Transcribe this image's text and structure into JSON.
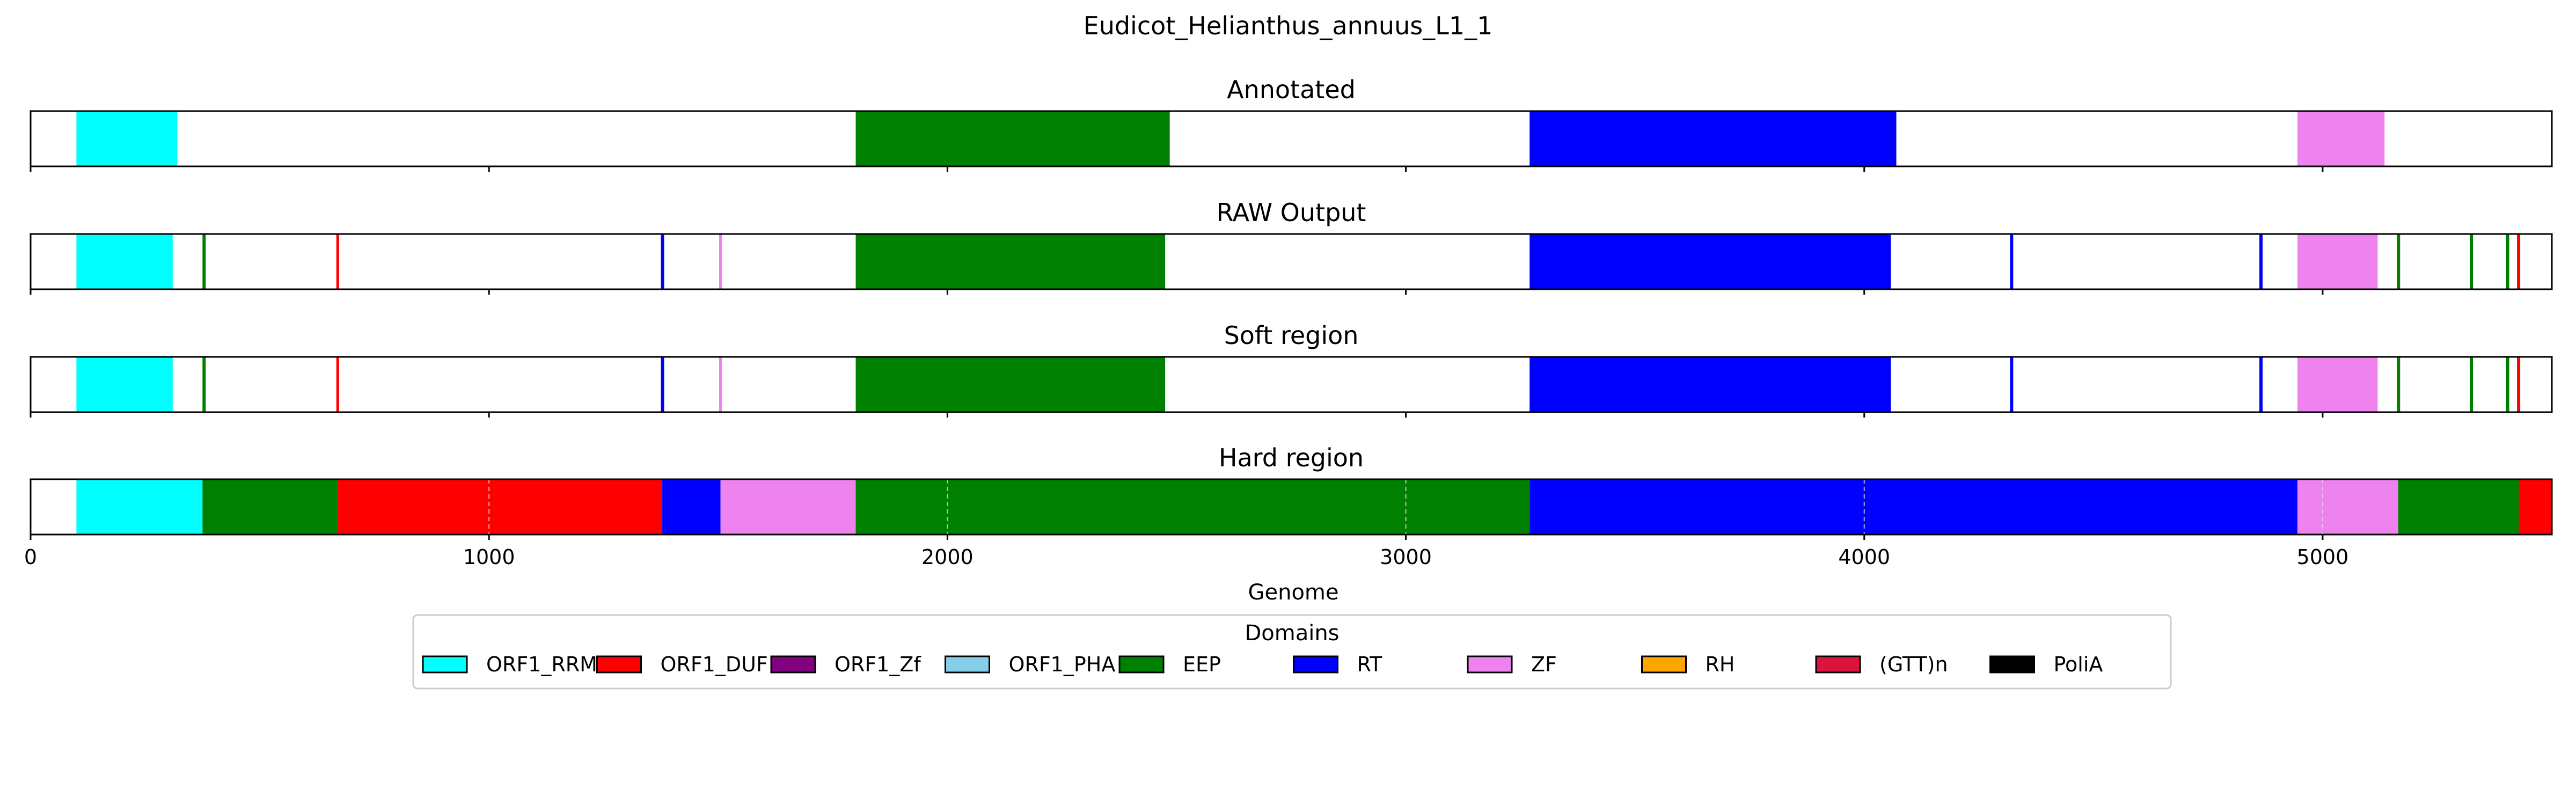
{
  "chart_data": {
    "type": "genome-track",
    "title": "Eudicot_Helianthus_annuus_L1_1",
    "xlabel": "Genome",
    "xlim": [
      0,
      5500
    ],
    "xticks": [
      0,
      1000,
      2000,
      3000,
      4000,
      5000
    ],
    "grid": "dashed vertical lines at x ticks (bottom panel)",
    "legend": {
      "title": "Domains",
      "placement": "bottom-center",
      "entries": [
        {
          "name": "ORF1_RRM",
          "color": "#00ffff"
        },
        {
          "name": "ORF1_DUF",
          "color": "#ff0000"
        },
        {
          "name": "ORF1_Zf",
          "color": "#800080"
        },
        {
          "name": "ORF1_PHA",
          "color": "#87ceeb"
        },
        {
          "name": "EEP",
          "color": "#008000"
        },
        {
          "name": "RT",
          "color": "#0000ff"
        },
        {
          "name": "ZF",
          "color": "#ee82ee"
        },
        {
          "name": "RH",
          "color": "#ffa500"
        },
        {
          "name": "(GTT)n",
          "color": "#dc143c"
        },
        {
          "name": "PoliA",
          "color": "#000000"
        }
      ]
    },
    "panels": [
      {
        "title": "Annotated",
        "segments": [
          {
            "domain": "ORF1_RRM",
            "start": 100,
            "end": 320
          },
          {
            "domain": "EEP",
            "start": 1800,
            "end": 2485
          },
          {
            "domain": "RT",
            "start": 3270,
            "end": 4070
          },
          {
            "domain": "ZF",
            "start": 4945,
            "end": 5135
          }
        ]
      },
      {
        "title": "RAW Output",
        "segments": [
          {
            "domain": "ORF1_RRM",
            "start": 100,
            "end": 310
          },
          {
            "domain": "EEP",
            "start": 375,
            "end": 382
          },
          {
            "domain": "ORF1_DUF",
            "start": 667,
            "end": 673
          },
          {
            "domain": "RT",
            "start": 1375,
            "end": 1382
          },
          {
            "domain": "ZF",
            "start": 1502,
            "end": 1508
          },
          {
            "domain": "EEP",
            "start": 1800,
            "end": 2475
          },
          {
            "domain": "RT",
            "start": 3270,
            "end": 4058
          },
          {
            "domain": "RT",
            "start": 4318,
            "end": 4325
          },
          {
            "domain": "RT",
            "start": 4862,
            "end": 4869
          },
          {
            "domain": "ZF",
            "start": 4945,
            "end": 5120
          },
          {
            "domain": "EEP",
            "start": 5162,
            "end": 5169
          },
          {
            "domain": "EEP",
            "start": 5321,
            "end": 5328
          },
          {
            "domain": "EEP",
            "start": 5400,
            "end": 5407
          },
          {
            "domain": "ORF1_DUF",
            "start": 5424,
            "end": 5431
          }
        ]
      },
      {
        "title": "Soft region",
        "segments": [
          {
            "domain": "ORF1_RRM",
            "start": 100,
            "end": 310
          },
          {
            "domain": "EEP",
            "start": 375,
            "end": 382
          },
          {
            "domain": "ORF1_DUF",
            "start": 667,
            "end": 673
          },
          {
            "domain": "RT",
            "start": 1375,
            "end": 1382
          },
          {
            "domain": "ZF",
            "start": 1502,
            "end": 1508
          },
          {
            "domain": "EEP",
            "start": 1800,
            "end": 2475
          },
          {
            "domain": "RT",
            "start": 3270,
            "end": 4058
          },
          {
            "domain": "RT",
            "start": 4318,
            "end": 4325
          },
          {
            "domain": "RT",
            "start": 4862,
            "end": 4869
          },
          {
            "domain": "ZF",
            "start": 4945,
            "end": 5120
          },
          {
            "domain": "EEP",
            "start": 5162,
            "end": 5169
          },
          {
            "domain": "EEP",
            "start": 5321,
            "end": 5328
          },
          {
            "domain": "EEP",
            "start": 5400,
            "end": 5407
          },
          {
            "domain": "ORF1_DUF",
            "start": 5424,
            "end": 5431
          }
        ]
      },
      {
        "title": "Hard region",
        "segments": [
          {
            "domain": "ORF1_RRM",
            "start": 100,
            "end": 375
          },
          {
            "domain": "EEP",
            "start": 375,
            "end": 670
          },
          {
            "domain": "ORF1_DUF",
            "start": 670,
            "end": 1378
          },
          {
            "domain": "RT",
            "start": 1378,
            "end": 1505
          },
          {
            "domain": "ZF",
            "start": 1505,
            "end": 1800
          },
          {
            "domain": "EEP",
            "start": 1800,
            "end": 3270
          },
          {
            "domain": "RT",
            "start": 3270,
            "end": 4945
          },
          {
            "domain": "ZF",
            "start": 4945,
            "end": 5165
          },
          {
            "domain": "EEP",
            "start": 5165,
            "end": 5428
          },
          {
            "domain": "ORF1_DUF",
            "start": 5428,
            "end": 5500
          }
        ]
      }
    ]
  }
}
